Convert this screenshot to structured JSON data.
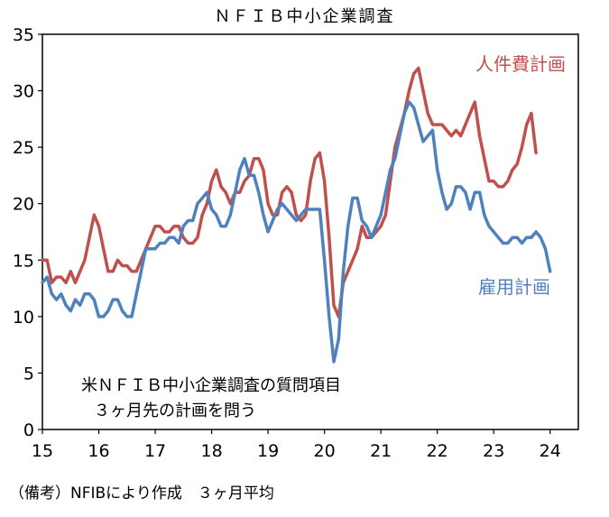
{
  "chart_data": {
    "type": "line",
    "title": "ＮＦＩＢ中小企業調査",
    "x_range": [
      2015,
      2024.5
    ],
    "ylim": [
      0,
      35
    ],
    "y_ticks": [
      0,
      5,
      10,
      15,
      20,
      25,
      30,
      35
    ],
    "x_tick_labels": [
      "15",
      "16",
      "17",
      "18",
      "19",
      "20",
      "21",
      "22",
      "23",
      "24"
    ],
    "grid": false,
    "series": [
      {
        "name": "人件費計画",
        "color": "#C0504D",
        "x_start": 2015.0,
        "step": 0.08333,
        "values": [
          15,
          15,
          13,
          13.5,
          13.5,
          13,
          14,
          13,
          14,
          15,
          17,
          19,
          18,
          16,
          14,
          14,
          15,
          14.5,
          14.5,
          14,
          14,
          15,
          16,
          17,
          18,
          18,
          17.5,
          17.5,
          18,
          18,
          17,
          16.5,
          16.5,
          17,
          19,
          20,
          22,
          23,
          21.5,
          21,
          20,
          21,
          21,
          22,
          22.5,
          24,
          24,
          23,
          20,
          19,
          19,
          21,
          21.5,
          21,
          19,
          18.5,
          19,
          22,
          24,
          24.5,
          22,
          17,
          11,
          10,
          13,
          14,
          15,
          16,
          18,
          17,
          17,
          17.5,
          18,
          19,
          22,
          25,
          26.5,
          28,
          30,
          31.5,
          32,
          30,
          28,
          27,
          27,
          27,
          26.5,
          26,
          26.5,
          26,
          27,
          28,
          29,
          26,
          24,
          22,
          22,
          21.5,
          21.5,
          22,
          23,
          23.5,
          25,
          27,
          28,
          24.5
        ]
      },
      {
        "name": "雇用計画",
        "color": "#4F81BD",
        "x_start": 2015.0,
        "step": 0.08333,
        "values": [
          13,
          13.5,
          12,
          11.5,
          12,
          11,
          10.5,
          11.5,
          11,
          12,
          12,
          11.5,
          10,
          10,
          10.5,
          11.5,
          11.5,
          10.5,
          10,
          10,
          12,
          14,
          16,
          16,
          16,
          16.5,
          16.5,
          17,
          17,
          16.5,
          18,
          18.5,
          18.5,
          20,
          20.5,
          21,
          19.5,
          19,
          18,
          18,
          19,
          21,
          23,
          24,
          22.5,
          22.5,
          21,
          19,
          17.5,
          18.5,
          19.5,
          20,
          19.5,
          19,
          18.5,
          19,
          19.5,
          19.5,
          19.5,
          19.5,
          15,
          10,
          6,
          8,
          14,
          18,
          20.5,
          20.5,
          18.5,
          18,
          17,
          18,
          19,
          21,
          23,
          24,
          26,
          28,
          29,
          28.5,
          27,
          25.5,
          26,
          26.5,
          23,
          21,
          19.5,
          20,
          21.5,
          21.5,
          21,
          19.5,
          21,
          21,
          19,
          18,
          17.5,
          17,
          16.5,
          16.5,
          17,
          17,
          16.5,
          17,
          17,
          17.5,
          17,
          16,
          14
        ]
      }
    ],
    "series_labels": [
      "人件費計画",
      "雇用計画"
    ],
    "annotations": [
      "米ＮＦＩＢ中小企業調査の質問項目",
      "３ヶ月先の計画を問う"
    ],
    "note": "（備考）NFIBにより作成　３ヶ月平均"
  }
}
